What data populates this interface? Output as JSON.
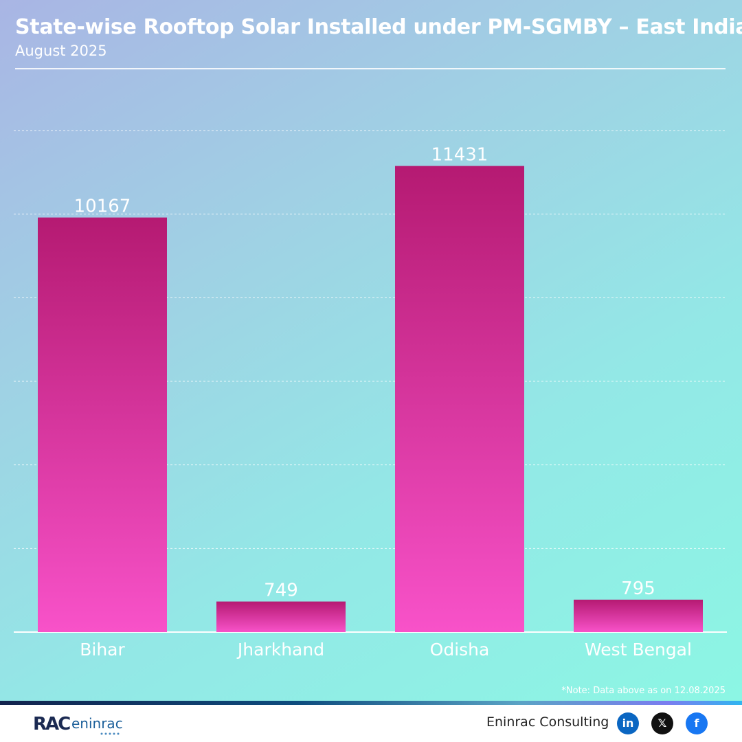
{
  "title": "State-wise Rooftop Solar Installed under PM-SGMBY – East India",
  "subtitle": "August 2025",
  "note": "*Note: Data above as on 12.08.2025",
  "footer": {
    "logo_text": "RACeninrac",
    "brand": "Eninrac Consulting",
    "social": [
      {
        "icon": "linkedin-icon",
        "glyph": "in",
        "color": "#0a66c2"
      },
      {
        "icon": "x-icon",
        "glyph": "𝕏",
        "color": "#111111"
      },
      {
        "icon": "facebook-icon",
        "glyph": "f",
        "color": "#1877f2"
      }
    ]
  },
  "chart_data": {
    "type": "bar",
    "title": "State-wise Rooftop Solar Installed under PM-SGMBY – East India",
    "subtitle": "August 2025",
    "categories": [
      "Bihar",
      "Jharkhand",
      "Odisha",
      "West Bengal"
    ],
    "values": [
      10167,
      749,
      11431,
      795
    ],
    "xlabel": "",
    "ylabel": "",
    "ylim": [
      0,
      12300
    ],
    "grid": true,
    "colors": {
      "bar_top": "#b51a72",
      "bar_bottom": "#f852c9",
      "text": "#ffffff"
    }
  }
}
